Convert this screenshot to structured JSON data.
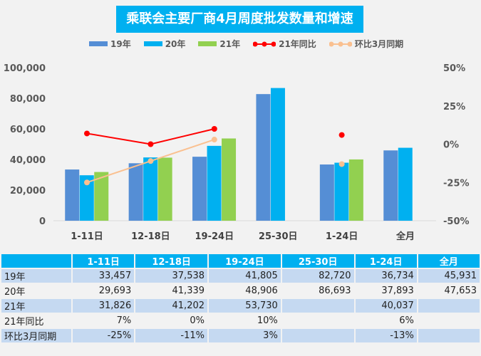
{
  "chart_data": {
    "type": "bar",
    "title": "乘联会主要厂商4月周度批发数量和增速",
    "categories": [
      "1-11日",
      "12-18日",
      "19-24日",
      "25-30日",
      "1-24日",
      "全月"
    ],
    "series": [
      {
        "name": "19年",
        "type": "bar",
        "color": "#558ed5",
        "values": [
          33457,
          37538,
          41805,
          82720,
          36734,
          45931
        ]
      },
      {
        "name": "20年",
        "type": "bar",
        "color": "#00b0f0",
        "values": [
          29693,
          41339,
          48906,
          86693,
          37893,
          47653
        ]
      },
      {
        "name": "21年",
        "type": "bar",
        "color": "#92d050",
        "values": [
          31826,
          41202,
          53730,
          null,
          40037,
          null
        ]
      },
      {
        "name": "21年同比",
        "type": "line",
        "axis": "right",
        "color": "#ff0000",
        "values": [
          7,
          0,
          10,
          null,
          6,
          null
        ]
      },
      {
        "name": "环比3月同期",
        "type": "line",
        "axis": "right",
        "color": "#fac090",
        "values": [
          -25,
          -11,
          3,
          null,
          -13,
          null
        ]
      }
    ],
    "ylim": [
      0,
      100000
    ],
    "yticks": [
      "0",
      "20,000",
      "40,000",
      "60,000",
      "80,000",
      "100,000"
    ],
    "y2lim": [
      -50,
      50
    ],
    "y2ticks": [
      "-50%",
      "-25%",
      "0%",
      "25%",
      "50%"
    ],
    "legend": "top",
    "grid": false
  },
  "table": {
    "header": [
      "",
      "1-11日",
      "12-18日",
      "19-24日",
      "25-30日",
      "1-24日",
      "全月"
    ],
    "rows": [
      [
        "19年",
        "33,457",
        "37,538",
        "41,805",
        "82,720",
        "36,734",
        "45,931"
      ],
      [
        "20年",
        "29,693",
        "41,339",
        "48,906",
        "86,693",
        "37,893",
        "47,653"
      ],
      [
        "21年",
        "31,826",
        "41,202",
        "53,730",
        "",
        "40,037",
        ""
      ],
      [
        "21年同比",
        "7%",
        "0%",
        "10%",
        "",
        "6%",
        ""
      ],
      [
        "环比3月同期",
        "-25%",
        "-11%",
        "3%",
        "",
        "-13%",
        ""
      ]
    ]
  }
}
